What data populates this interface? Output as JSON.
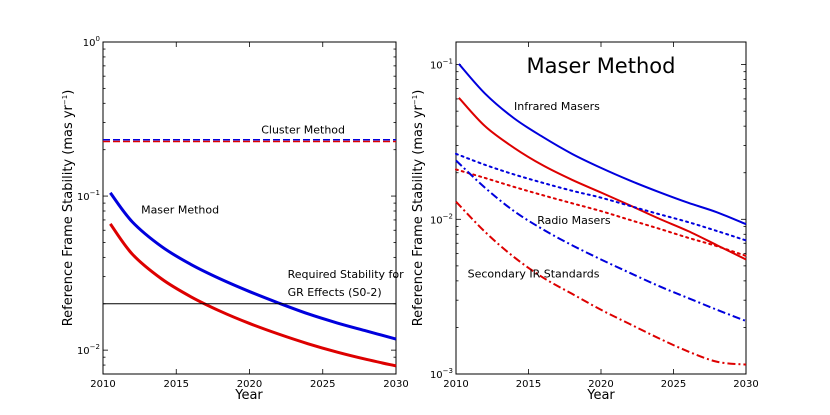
{
  "colors": {
    "blue": "#0000dd",
    "red": "#dd0000",
    "black": "#000000"
  },
  "chart_data": [
    {
      "type": "line",
      "title": "",
      "xlabel": "Year",
      "ylabel": "Reference Frame Stability (mas yr",
      "ylabel_sup": "−1",
      "ylabel_close": ")",
      "yscale": "log",
      "xlim": [
        2010,
        2030
      ],
      "ylim": [
        0.007,
        1.0
      ],
      "xticks": [
        2010,
        2015,
        2020,
        2025,
        2030
      ],
      "xtick_labels": [
        "2010",
        "2015",
        "2020",
        "2025",
        "2030"
      ],
      "yticks": [
        {
          "value": 1.0,
          "base": "10",
          "exp": "0"
        },
        {
          "value": 0.1,
          "base": "10",
          "exp": "−1"
        },
        {
          "value": 0.01,
          "base": "10",
          "exp": "−2"
        }
      ],
      "series": [
        {
          "name": "Maser Method (blue)",
          "color": "blue",
          "style": "solid",
          "width": 3,
          "x": [
            2010.5,
            2012,
            2014,
            2016,
            2018,
            2020,
            2022,
            2024,
            2026,
            2028,
            2030
          ],
          "y": [
            0.105,
            0.068,
            0.047,
            0.036,
            0.029,
            0.024,
            0.0202,
            0.0172,
            0.015,
            0.0133,
            0.0118
          ]
        },
        {
          "name": "Maser Method (red)",
          "color": "red",
          "style": "solid",
          "width": 3,
          "x": [
            2010.5,
            2012,
            2014,
            2016,
            2018,
            2020,
            2022,
            2024,
            2026,
            2028,
            2030
          ],
          "y": [
            0.066,
            0.042,
            0.029,
            0.0222,
            0.0179,
            0.0149,
            0.0127,
            0.011,
            0.0097,
            0.0087,
            0.0079
          ]
        },
        {
          "name": "Cluster Method (blue)",
          "color": "blue",
          "style": "dashed",
          "width": 1.5,
          "x": [
            2010,
            2030
          ],
          "y": [
            0.232,
            0.232
          ]
        },
        {
          "name": "Cluster Method (red)",
          "color": "red",
          "style": "dashed",
          "width": 1.5,
          "x": [
            2010,
            2030
          ],
          "y": [
            0.226,
            0.226
          ]
        },
        {
          "name": "Required Stability",
          "color": "black",
          "style": "solid",
          "width": 1,
          "x": [
            2010,
            2030
          ],
          "y": [
            0.02,
            0.02
          ]
        }
      ],
      "annotations": [
        {
          "text": "Cluster Method",
          "x": 2020.8,
          "y": 0.255
        },
        {
          "text": "Maser Method",
          "x": 2012.6,
          "y": 0.077
        },
        {
          "text": "Required Stability for",
          "x": 2022.6,
          "y": 0.0295
        },
        {
          "text": "GR Effects (S0-2)",
          "x": 2022.6,
          "y": 0.0225
        }
      ]
    },
    {
      "type": "line",
      "title": "Maser Method",
      "xlabel": "Year",
      "ylabel": "Reference Frame Stability (mas yr",
      "ylabel_sup": "−1",
      "ylabel_close": ")",
      "yscale": "log",
      "xlim": [
        2010,
        2030
      ],
      "ylim": [
        0.001,
        0.14
      ],
      "xticks": [
        2010,
        2015,
        2020,
        2025,
        2030
      ],
      "xtick_labels": [
        "2010",
        "2015",
        "2020",
        "2025",
        "2030"
      ],
      "yticks": [
        {
          "value": 0.1,
          "base": "10",
          "exp": "−1"
        },
        {
          "value": 0.01,
          "base": "10",
          "exp": "−2"
        },
        {
          "value": 0.001,
          "base": "10",
          "exp": "−3"
        }
      ],
      "series": [
        {
          "name": "Infrared Masers (blue)",
          "color": "blue",
          "style": "solid",
          "width": 2,
          "x": [
            2010.2,
            2012,
            2014,
            2016,
            2018,
            2020,
            2022,
            2024,
            2026,
            2028,
            2030
          ],
          "y": [
            0.101,
            0.065,
            0.045,
            0.034,
            0.0265,
            0.0215,
            0.0178,
            0.015,
            0.0128,
            0.0111,
            0.0093
          ]
        },
        {
          "name": "Infrared Masers (red)",
          "color": "red",
          "style": "solid",
          "width": 2,
          "x": [
            2010.2,
            2012,
            2014,
            2016,
            2018,
            2020,
            2022,
            2024,
            2026,
            2028,
            2030
          ],
          "y": [
            0.061,
            0.04,
            0.029,
            0.0223,
            0.018,
            0.0149,
            0.0123,
            0.0101,
            0.0084,
            0.0068,
            0.0055
          ]
        },
        {
          "name": "Radio Masers (blue)",
          "color": "blue",
          "style": "dotted",
          "width": 2,
          "x": [
            2010,
            2012,
            2014,
            2016,
            2018,
            2020,
            2022,
            2024,
            2026,
            2028,
            2030
          ],
          "y": [
            0.0265,
            0.0225,
            0.0195,
            0.0172,
            0.0153,
            0.0138,
            0.0122,
            0.0108,
            0.0096,
            0.0084,
            0.0073
          ]
        },
        {
          "name": "Radio Masers (red)",
          "color": "red",
          "style": "dotted",
          "width": 2,
          "x": [
            2010,
            2012,
            2014,
            2016,
            2018,
            2020,
            2022,
            2024,
            2026,
            2028,
            2030
          ],
          "y": [
            0.021,
            0.0185,
            0.0162,
            0.0143,
            0.0127,
            0.0113,
            0.0099,
            0.0087,
            0.0076,
            0.0067,
            0.0058
          ]
        },
        {
          "name": "Secondary IR Standards (blue)",
          "color": "blue",
          "style": "dashdot",
          "width": 2,
          "x": [
            2010,
            2012,
            2014,
            2016,
            2018,
            2020,
            2022,
            2024,
            2026,
            2028,
            2030
          ],
          "y": [
            0.024,
            0.016,
            0.0113,
            0.0086,
            0.0068,
            0.0055,
            0.0045,
            0.0037,
            0.0031,
            0.0026,
            0.0022
          ]
        },
        {
          "name": "Secondary IR Standards (red)",
          "color": "red",
          "style": "dashdot",
          "width": 2,
          "x": [
            2010,
            2012,
            2014,
            2016,
            2018,
            2020,
            2022,
            2024,
            2026,
            2028,
            2030
          ],
          "y": [
            0.013,
            0.0083,
            0.0057,
            0.0042,
            0.0033,
            0.0026,
            0.0021,
            0.0017,
            0.0014,
            0.0012,
            0.00115
          ]
        }
      ],
      "annotations": [
        {
          "text": "Infrared Masers",
          "x": 2014.0,
          "y": 0.051
        },
        {
          "text": "Radio Masers",
          "x": 2015.6,
          "y": 0.0093
        },
        {
          "text": "Secondary IR Standards",
          "x": 2010.8,
          "y": 0.0042
        }
      ]
    }
  ]
}
